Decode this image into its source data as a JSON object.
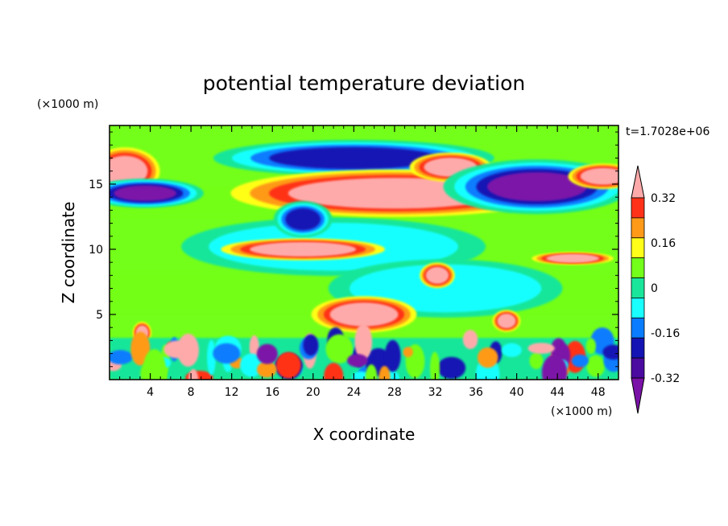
{
  "chart_data": {
    "type": "heatmap",
    "title": "potential temperature deviation",
    "xlabel": "X coordinate",
    "ylabel": "Z coordinate",
    "x_units": "(×1000 m)",
    "y_units": "(×1000 m)",
    "time_label": "t=1.7028e+06",
    "xlim": [
      0,
      50
    ],
    "ylim": [
      0,
      19.5
    ],
    "x_ticks": [
      4,
      8,
      12,
      16,
      20,
      24,
      28,
      32,
      36,
      40,
      44,
      48
    ],
    "y_ticks": [
      5,
      10,
      15
    ],
    "colorbar": {
      "levels": [
        -0.4,
        -0.32,
        -0.24,
        -0.16,
        -0.08,
        0,
        0.08,
        0.16,
        0.24,
        0.32,
        0.4
      ],
      "labels": [
        "0.32",
        "0.16",
        "0",
        "-0.16",
        "-0.32"
      ],
      "label_values": [
        0.32,
        0.16,
        0,
        -0.16,
        -0.32
      ],
      "colors": [
        "#7b12a8",
        "#4b0aa0",
        "#1414b4",
        "#0a7cff",
        "#19ffff",
        "#19e69a",
        "#73ff19",
        "#ffff19",
        "#ff9a19",
        "#ff3219",
        "#ffaaaa"
      ],
      "extend": "both"
    },
    "field_features": {
      "background": "#73ff19",
      "features": [
        {
          "kind": "band",
          "x": [
            0,
            50
          ],
          "z": [
            12.6,
            14.6
          ],
          "level": 0
        },
        {
          "kind": "band",
          "x": [
            0,
            50
          ],
          "z": [
            5.2,
            8.2
          ],
          "level": 0
        },
        {
          "kind": "blob",
          "x": 22,
          "z": 10.2,
          "rx": 13,
          "ry": 1.6,
          "level": -0.16
        },
        {
          "kind": "blob",
          "x": 33,
          "z": 7.0,
          "rx": 10,
          "ry": 1.6,
          "level": -0.16
        },
        {
          "kind": "blob",
          "x": 1.5,
          "z": 16.0,
          "rx": 3,
          "ry": 1.3,
          "level": 0.4
        },
        {
          "kind": "blob",
          "x": 3.5,
          "z": 14.3,
          "rx": 5,
          "ry": 0.8,
          "level": -0.4
        },
        {
          "kind": "blob",
          "x": 24,
          "z": 17.0,
          "rx": 12,
          "ry": 1.0,
          "level": -0.32
        },
        {
          "kind": "blob",
          "x": 28,
          "z": 14.3,
          "rx": 14,
          "ry": 1.3,
          "level": 0.4
        },
        {
          "kind": "blob",
          "x": 33.5,
          "z": 16.3,
          "rx": 3.5,
          "ry": 0.8,
          "level": 0.4
        },
        {
          "kind": "blob",
          "x": 42,
          "z": 14.8,
          "rx": 8,
          "ry": 1.5,
          "level": -0.4
        },
        {
          "kind": "blob",
          "x": 48.5,
          "z": 15.6,
          "rx": 3,
          "ry": 0.7,
          "level": 0.4
        },
        {
          "kind": "blob",
          "x": 19,
          "z": 12.3,
          "rx": 2.5,
          "ry": 1.0,
          "level": -0.32
        },
        {
          "kind": "blob",
          "x": 19,
          "z": 10.0,
          "rx": 7,
          "ry": 0.6,
          "level": 0.4
        },
        {
          "kind": "blob",
          "x": 45.5,
          "z": 9.3,
          "rx": 3.5,
          "ry": 0.35,
          "level": 0.4
        },
        {
          "kind": "blob",
          "x": 32.2,
          "z": 8.0,
          "rx": 1.5,
          "ry": 0.7,
          "level": 0.4
        },
        {
          "kind": "blob",
          "x": 25,
          "z": 5.0,
          "rx": 4.5,
          "ry": 1.0,
          "level": 0.4
        },
        {
          "kind": "blob",
          "x": 3.2,
          "z": 3.6,
          "rx": 0.8,
          "ry": 0.6,
          "level": 0.4
        },
        {
          "kind": "blob",
          "x": 39,
          "z": 4.5,
          "rx": 1.2,
          "ry": 0.6,
          "level": 0.4
        },
        {
          "kind": "band",
          "x": [
            0,
            50
          ],
          "z": [
            0,
            3.2
          ],
          "level": "turbulent"
        }
      ]
    }
  }
}
